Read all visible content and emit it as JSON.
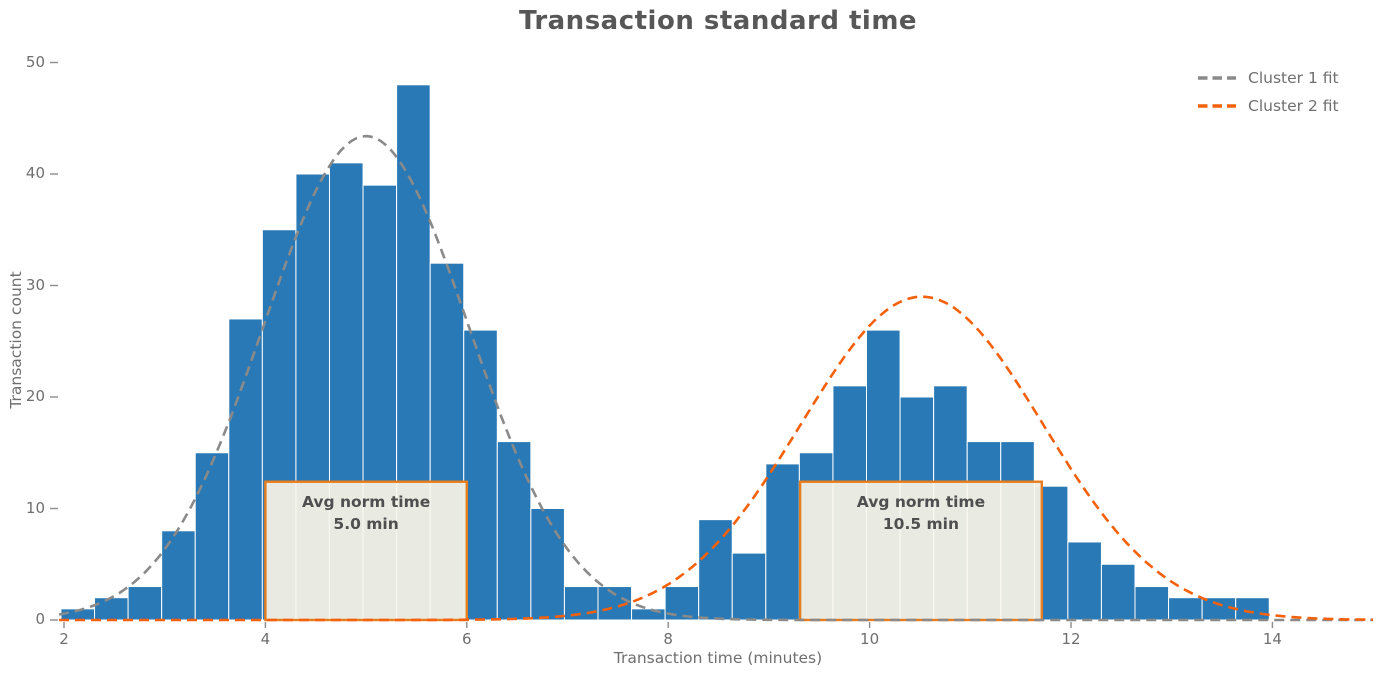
{
  "title": "Transaction standard time",
  "axes": {
    "x_label": "Transaction time (minutes)",
    "y_label": "Transaction count",
    "x_ticks": [
      2,
      4,
      6,
      8,
      10,
      12,
      14
    ],
    "y_ticks": [
      0,
      10,
      20,
      30,
      40,
      50
    ]
  },
  "legend": {
    "items": [
      {
        "label": "Cluster 1 fit",
        "color": "#8a8a8a"
      },
      {
        "label": "Cluster 2 fit",
        "color": "#f4610c"
      }
    ]
  },
  "annotations": [
    {
      "line1": "Avg norm time",
      "line2": "5.0 min",
      "x_start": 4.0,
      "x_end": 6.0,
      "y_top": 12.4
    },
    {
      "line1": "Avg norm time",
      "line2": "10.5 min",
      "x_start": 9.31,
      "x_end": 11.71,
      "y_top": 12.4
    }
  ],
  "colors": {
    "bar_fill": "#2879b5",
    "bar_edge": "#ffffff",
    "cluster1_line": "#8a8a8a",
    "cluster2_line": "#f4610c",
    "annotation_fill": "#f0ede2",
    "annotation_border": "#e87d1e",
    "tick_mark": "#8c8c8c",
    "text_primary": "#575757",
    "text_secondary": "#6f6f6f"
  },
  "chart_data": {
    "type": "bar",
    "subtype": "histogram",
    "title": "Transaction standard time",
    "xlabel": "Transaction time (minutes)",
    "ylabel": "Transaction count",
    "xlim": [
      1.92,
      15.05
    ],
    "ylim": [
      0,
      51.6
    ],
    "grid": false,
    "legend_position": "upper right",
    "bin_start": 1.97,
    "bin_width": 0.3333,
    "counts": [
      1,
      2,
      3,
      8,
      15,
      27,
      35,
      40,
      41,
      39,
      48,
      32,
      26,
      16,
      10,
      3,
      3,
      1,
      3,
      9,
      6,
      14,
      15,
      21,
      26,
      20,
      21,
      16,
      16,
      12,
      7,
      5,
      3,
      2,
      2,
      2
    ],
    "fits": [
      {
        "name": "Cluster 1 fit",
        "mean": 5.0,
        "sigma": 1.02,
        "peak": 43.4,
        "line_style": "dashed",
        "color": "#8a8a8a"
      },
      {
        "name": "Cluster 2 fit",
        "mean": 10.52,
        "sigma": 1.2,
        "peak": 29.0,
        "line_style": "dashed",
        "color": "#f4610c"
      }
    ],
    "annotation_boxes": [
      {
        "text": "Avg norm time 5.0 min",
        "x_range": [
          4.0,
          6.0
        ],
        "y_range": [
          0,
          12.4
        ]
      },
      {
        "text": "Avg norm time 10.5 min",
        "x_range": [
          9.31,
          11.71
        ],
        "y_range": [
          0,
          12.4
        ]
      }
    ]
  }
}
